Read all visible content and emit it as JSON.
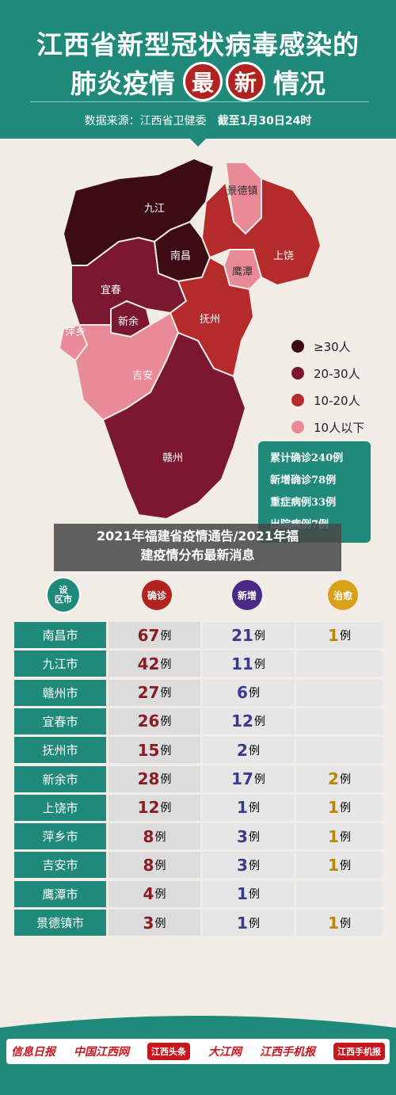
{
  "header": {
    "title_line1": "江西省新型冠状病毒感染的",
    "title_line2_a": "肺炎疫情",
    "title_circle1": "最",
    "title_circle2": "新",
    "title_line2_b": "情况",
    "source": "数据来源：江西省卫健委",
    "as_of": "截至1月30日24时"
  },
  "map": {
    "regions": [
      {
        "name": "九江",
        "level": "≥30人"
      },
      {
        "name": "南昌",
        "level": "≥30人"
      },
      {
        "name": "景德镇",
        "level": "10人以下"
      },
      {
        "name": "上饶",
        "level": "10-20人"
      },
      {
        "name": "鹰潭",
        "level": "10人以下"
      },
      {
        "name": "宜春",
        "level": "20-30人"
      },
      {
        "name": "新余",
        "level": "20-30人"
      },
      {
        "name": "抚州",
        "level": "10-20人"
      },
      {
        "name": "萍乡",
        "level": "10人以下"
      },
      {
        "name": "吉安",
        "level": "10人以下"
      },
      {
        "name": "赣州",
        "level": "20-30人"
      }
    ]
  },
  "legend": [
    {
      "label": "≥30人",
      "color": "#3d0b14"
    },
    {
      "label": "20-30人",
      "color": "#7b1830"
    },
    {
      "label": "10-20人",
      "color": "#b52a2a"
    },
    {
      "label": "10人以下",
      "color": "#e88a97"
    }
  ],
  "stats": [
    "累计确诊240例",
    "新增确诊78例",
    "重症病例33例",
    "出院病例7例"
  ],
  "overlay": {
    "line1": "2021年福建省疫情通告/2021年福",
    "line2": "建疫情分布最新消息"
  },
  "table": {
    "head_region": "设\n区市",
    "head_region_1": "设",
    "head_region_2": "区市",
    "head_confirmed": "确诊",
    "head_new": "新增",
    "head_cured": "治愈",
    "unit": "例",
    "rows": [
      {
        "city": "南昌市",
        "confirmed": "67",
        "new": "21",
        "cured": "1"
      },
      {
        "city": "九江市",
        "confirmed": "42",
        "new": "11",
        "cured": ""
      },
      {
        "city": "赣州市",
        "confirmed": "27",
        "new": "6",
        "cured": ""
      },
      {
        "city": "宜春市",
        "confirmed": "26",
        "new": "12",
        "cured": ""
      },
      {
        "city": "抚州市",
        "confirmed": "15",
        "new": "2",
        "cured": ""
      },
      {
        "city": "新余市",
        "confirmed": "28",
        "new": "17",
        "cured": "2"
      },
      {
        "city": "上饶市",
        "confirmed": "12",
        "new": "1",
        "cured": "1"
      },
      {
        "city": "萍乡市",
        "confirmed": "8",
        "new": "3",
        "cured": "1"
      },
      {
        "city": "吉安市",
        "confirmed": "8",
        "new": "3",
        "cured": "1"
      },
      {
        "city": "鹰潭市",
        "confirmed": "4",
        "new": "1",
        "cured": ""
      },
      {
        "city": "景德镇市",
        "confirmed": "3",
        "new": "1",
        "cured": "1"
      }
    ]
  },
  "footer": {
    "logos": [
      "信息日报",
      "中国江西网",
      "江西头条",
      "大江网",
      "江西手机报",
      "江西手机报"
    ]
  }
}
